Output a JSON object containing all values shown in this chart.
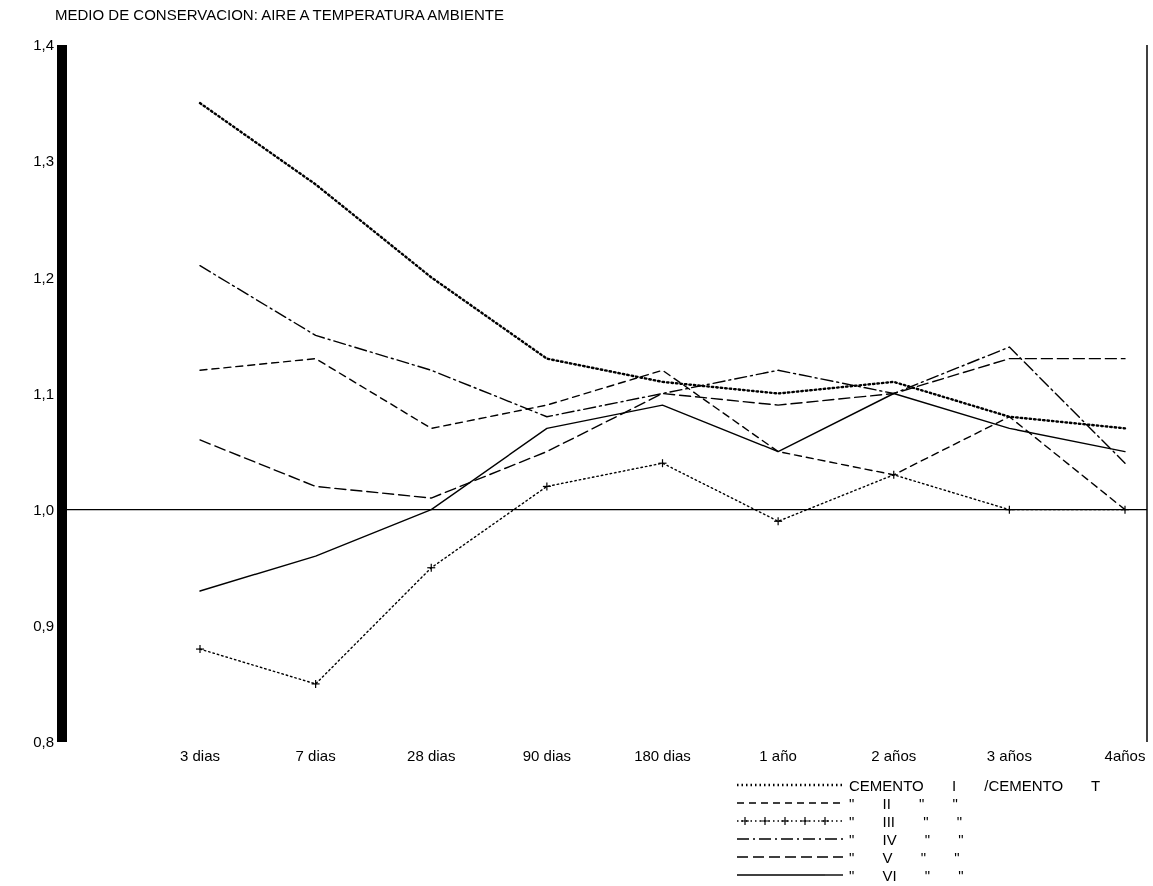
{
  "chart_data": {
    "type": "line",
    "title": "MEDIO DE CONSERVACION:  AIRE A TEMPERATURA AMBIENTE",
    "categories": [
      "3 dias",
      "7 dias",
      "28 dias",
      "90 dias",
      "180 dias",
      "1 año",
      "2 años",
      "3 años",
      "4años"
    ],
    "ylim": [
      0.8,
      1.4
    ],
    "yticks": [
      {
        "value": 0.8,
        "label": "0,8"
      },
      {
        "value": 0.9,
        "label": "0,9"
      },
      {
        "value": 1.0,
        "label": "1,0"
      },
      {
        "value": 1.1,
        "label": "1,1"
      },
      {
        "value": 1.2,
        "label": "1,2"
      },
      {
        "value": 1.3,
        "label": "1,3"
      },
      {
        "value": 1.4,
        "label": "1,4"
      }
    ],
    "grid": false,
    "legend": "bottom right",
    "marker": "none",
    "ref_lines": [
      {
        "axis": "y",
        "value": 1.0,
        "color": "#000000",
        "line_style": "solid"
      }
    ],
    "series": [
      {
        "name": "CEMENTO I /CEMENTO T",
        "color": "#000000",
        "line_style": "dotted",
        "values": [
          1.35,
          1.28,
          1.2,
          1.13,
          1.11,
          1.1,
          1.11,
          1.08,
          1.07
        ]
      },
      {
        "name": "\" II \" \"",
        "color": "#000000",
        "line_style": "dashed",
        "values": [
          1.12,
          1.13,
          1.07,
          1.09,
          1.12,
          1.05,
          1.03,
          1.08,
          1.0
        ]
      },
      {
        "name": "\" III \" \"",
        "color": "#000000",
        "line_style": "dotted",
        "marker": "cross",
        "values": [
          0.88,
          0.85,
          0.95,
          1.02,
          1.04,
          0.99,
          1.03,
          1.0,
          1.0
        ]
      },
      {
        "name": "\" IV \" \"",
        "color": "#000000",
        "line_style": "dashdot",
        "values": [
          1.21,
          1.15,
          1.12,
          1.08,
          1.1,
          1.12,
          1.1,
          1.14,
          1.04
        ]
      },
      {
        "name": "\" V \" \"",
        "color": "#000000",
        "line_style": "longdash",
        "values": [
          1.06,
          1.02,
          1.01,
          1.05,
          1.1,
          1.09,
          1.1,
          1.13,
          1.13
        ]
      },
      {
        "name": "\" VI \" \"",
        "color": "#000000",
        "line_style": "solid",
        "values": [
          0.93,
          0.96,
          1.0,
          1.07,
          1.09,
          1.05,
          1.1,
          1.07,
          1.05
        ]
      }
    ]
  }
}
